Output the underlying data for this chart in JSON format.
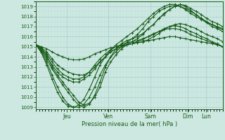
{
  "xlabel": "Pression niveau de la mer( hPa )",
  "ylim": [
    1008.8,
    1019.5
  ],
  "yticks": [
    1009,
    1010,
    1011,
    1012,
    1013,
    1014,
    1015,
    1016,
    1017,
    1018,
    1019
  ],
  "day_labels": [
    "Jeu",
    "Ven",
    "Sam",
    "Dim",
    "Lun"
  ],
  "bg_color": "#cce8e0",
  "line_color": "#1a5c1a",
  "grid_major_color": "#aacccc",
  "grid_minor_color": "#bbdddd",
  "series": [
    [
      1015.2,
      1014.8,
      1014.2,
      1013.0,
      1012.2,
      1011.5,
      1010.8,
      1010.2,
      1009.5,
      1009.2,
      1009.4,
      1010.0,
      1011.0,
      1012.5,
      1013.5,
      1014.2,
      1014.8,
      1015.2,
      1015.5,
      1015.8,
      1016.2,
      1016.8,
      1017.2,
      1017.8,
      1018.2,
      1018.7,
      1019.0,
      1019.2,
      1019.1,
      1018.8,
      1018.5,
      1018.2,
      1017.8,
      1017.5,
      1017.3,
      1017.0
    ],
    [
      1015.2,
      1014.6,
      1013.8,
      1012.8,
      1012.0,
      1011.2,
      1010.5,
      1009.8,
      1009.2,
      1009.0,
      1009.3,
      1010.2,
      1011.5,
      1013.0,
      1014.0,
      1014.8,
      1015.3,
      1015.6,
      1015.8,
      1016.0,
      1016.3,
      1016.8,
      1017.2,
      1017.8,
      1018.3,
      1018.7,
      1019.0,
      1019.2,
      1019.0,
      1018.6,
      1018.2,
      1017.8,
      1017.4,
      1017.0,
      1016.8,
      1016.5
    ],
    [
      1015.2,
      1014.9,
      1014.5,
      1013.8,
      1013.2,
      1012.8,
      1012.5,
      1012.3,
      1012.2,
      1012.2,
      1012.5,
      1013.0,
      1013.5,
      1014.0,
      1014.5,
      1014.8,
      1015.0,
      1015.2,
      1015.3,
      1015.4,
      1015.5,
      1015.7,
      1016.0,
      1016.3,
      1016.7,
      1017.0,
      1017.2,
      1017.3,
      1017.2,
      1017.0,
      1016.8,
      1016.5,
      1016.2,
      1016.0,
      1015.8,
      1015.5
    ],
    [
      1015.2,
      1014.7,
      1014.0,
      1013.2,
      1012.5,
      1012.0,
      1011.7,
      1011.5,
      1011.5,
      1011.8,
      1012.2,
      1012.8,
      1013.5,
      1014.0,
      1014.5,
      1014.8,
      1015.0,
      1015.2,
      1015.3,
      1015.5,
      1015.7,
      1016.0,
      1016.3,
      1016.5,
      1016.8,
      1017.0,
      1017.1,
      1017.0,
      1016.8,
      1016.5,
      1016.3,
      1016.0,
      1015.8,
      1015.5,
      1015.3,
      1015.0
    ],
    [
      1015.2,
      1014.8,
      1014.3,
      1013.5,
      1012.8,
      1012.3,
      1012.0,
      1011.8,
      1011.8,
      1012.0,
      1012.5,
      1013.2,
      1013.8,
      1014.3,
      1014.7,
      1015.0,
      1015.2,
      1015.4,
      1015.5,
      1015.6,
      1015.8,
      1016.0,
      1016.2,
      1016.5,
      1016.7,
      1016.8,
      1016.8,
      1016.7,
      1016.5,
      1016.2,
      1016.0,
      1015.8,
      1015.6,
      1015.4,
      1015.2,
      1015.0
    ],
    [
      1015.2,
      1015.0,
      1014.8,
      1014.5,
      1014.2,
      1014.0,
      1013.8,
      1013.7,
      1013.7,
      1013.8,
      1014.0,
      1014.3,
      1014.5,
      1014.7,
      1014.9,
      1015.0,
      1015.1,
      1015.2,
      1015.3,
      1015.4,
      1015.5,
      1015.6,
      1015.7,
      1015.8,
      1015.9,
      1016.0,
      1016.0,
      1015.9,
      1015.8,
      1015.7,
      1015.6,
      1015.5,
      1015.4,
      1015.3,
      1015.2,
      1015.0
    ],
    [
      1015.2,
      1014.5,
      1013.5,
      1012.2,
      1011.0,
      1010.0,
      1009.3,
      1009.0,
      1009.0,
      1009.3,
      1010.0,
      1011.0,
      1012.2,
      1013.2,
      1014.0,
      1014.5,
      1015.0,
      1015.4,
      1015.8,
      1016.2,
      1016.8,
      1017.5,
      1018.0,
      1018.5,
      1018.8,
      1019.0,
      1019.1,
      1019.0,
      1018.8,
      1018.5,
      1018.2,
      1017.8,
      1017.5,
      1017.2,
      1016.9,
      1016.7
    ],
    [
      1015.2,
      1014.4,
      1013.2,
      1011.8,
      1010.5,
      1009.6,
      1009.1,
      1009.0,
      1009.2,
      1009.8,
      1010.8,
      1012.0,
      1013.2,
      1014.0,
      1014.7,
      1015.2,
      1015.6,
      1016.0,
      1016.4,
      1016.8,
      1017.3,
      1017.8,
      1018.3,
      1018.7,
      1019.0,
      1019.2,
      1019.2,
      1019.0,
      1018.7,
      1018.3,
      1018.0,
      1017.7,
      1017.4,
      1017.2,
      1017.0,
      1016.8
    ]
  ],
  "xlim_days": 4.5,
  "day_x_positions": [
    0.75,
    1.75,
    2.75,
    3.65,
    4.1
  ]
}
